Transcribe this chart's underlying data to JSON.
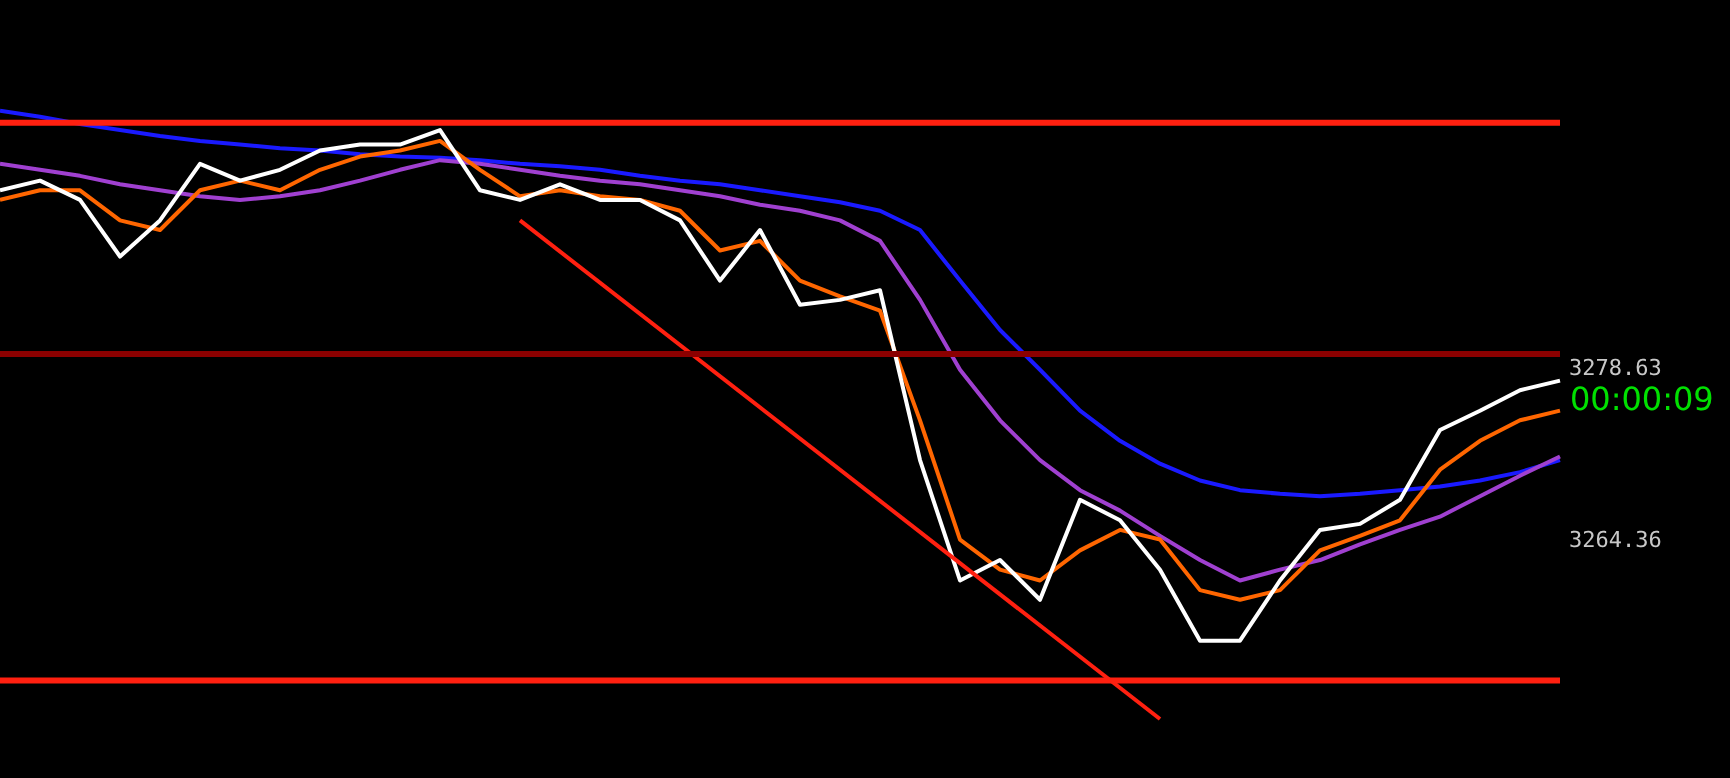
{
  "chart_data": {
    "type": "line",
    "categories": [
      null,
      null,
      null,
      null,
      null,
      null,
      null,
      null,
      null,
      null,
      null,
      null,
      null,
      null,
      null,
      null,
      null,
      null,
      null,
      null,
      null,
      null,
      null,
      null,
      null,
      null,
      null,
      null,
      null,
      null,
      null,
      null,
      null,
      null,
      null,
      null,
      null,
      null,
      null,
      null
    ],
    "series": [
      {
        "color": "#1a1aff",
        "values": [
          3300.0,
          3299.5,
          3298.9,
          3298.4,
          3297.9,
          3297.5,
          3297.2,
          3296.9,
          3296.7,
          3296.4,
          3296.2,
          3296.1,
          3295.9,
          3295.6,
          3295.4,
          3295.1,
          3294.6,
          3294.2,
          3293.9,
          3293.4,
          3292.9,
          3292.4,
          3291.7,
          3290.1,
          3285.9,
          3281.8,
          3278.5,
          3275.1,
          3272.6,
          3270.7,
          3269.3,
          3268.5,
          3268.2,
          3268.0,
          3268.2,
          3268.5,
          3268.8,
          3269.3,
          3270.0,
          3271.0
        ]
      },
      {
        "color": "#a040d0",
        "values": [
          3295.6,
          3295.1,
          3294.6,
          3293.9,
          3293.4,
          3292.9,
          3292.6,
          3292.9,
          3293.4,
          3294.2,
          3295.1,
          3295.9,
          3295.6,
          3295.1,
          3294.6,
          3294.2,
          3293.9,
          3293.4,
          3292.9,
          3292.2,
          3291.7,
          3290.9,
          3289.2,
          3284.3,
          3278.5,
          3274.3,
          3271.0,
          3268.5,
          3266.8,
          3264.7,
          3262.7,
          3261.0,
          3261.9,
          3262.7,
          3264.0,
          3265.2,
          3266.3,
          3268.0,
          3269.7,
          3271.3
        ]
      },
      {
        "color": "#ff6600",
        "values": [
          3292.6,
          3293.4,
          3293.4,
          3290.9,
          3290.1,
          3293.4,
          3294.2,
          3293.4,
          3295.1,
          3296.2,
          3296.7,
          3297.5,
          3295.1,
          3292.9,
          3293.4,
          3292.9,
          3292.6,
          3291.7,
          3288.4,
          3289.2,
          3285.9,
          3284.6,
          3283.4,
          3274.3,
          3264.4,
          3261.9,
          3261.0,
          3263.5,
          3265.2,
          3264.4,
          3260.2,
          3259.4,
          3260.2,
          3263.5,
          3264.7,
          3266.0,
          3270.2,
          3272.6,
          3274.3,
          3275.1
        ]
      },
      {
        "color": "#ffffff",
        "values": [
          3293.4,
          3294.2,
          3292.6,
          3287.9,
          3290.9,
          3295.6,
          3294.2,
          3295.1,
          3296.7,
          3297.2,
          3297.2,
          3298.4,
          3293.4,
          3292.6,
          3293.9,
          3292.6,
          3292.6,
          3290.9,
          3285.9,
          3290.1,
          3283.9,
          3284.3,
          3285.1,
          3271.0,
          3261.0,
          3262.7,
          3259.4,
          3267.7,
          3266.0,
          3261.9,
          3256.0,
          3256.0,
          3261.0,
          3265.2,
          3265.7,
          3267.7,
          3273.5,
          3275.1,
          3276.8,
          3277.6
        ]
      },
      {
        "type": "line",
        "color": "#ff2010",
        "values": [
          null,
          null,
          null,
          null,
          null,
          null,
          null,
          null,
          null,
          null,
          null,
          null,
          null,
          3290.9,
          null,
          null,
          null,
          null,
          null,
          null,
          null,
          null,
          null,
          null,
          null,
          null,
          null,
          null,
          null,
          3249.5,
          null,
          null,
          null,
          null,
          null,
          null,
          null,
          null,
          null,
          null
        ]
      }
    ],
    "ylim": [
      3244.6,
      3309.2
    ],
    "yticks": [
      3278.63,
      3264.36
    ],
    "ref_lines": [
      {
        "axis": "y",
        "value": 3299.0,
        "color": "#ff2010"
      },
      {
        "axis": "y",
        "value": 3252.7,
        "color": "#ff2010"
      },
      {
        "axis": "y",
        "value": 3279.8,
        "color": "#8b0000"
      }
    ],
    "annotations": [
      "00:00:09"
    ],
    "grid": false,
    "marker": "none",
    "line_style": "solid"
  }
}
